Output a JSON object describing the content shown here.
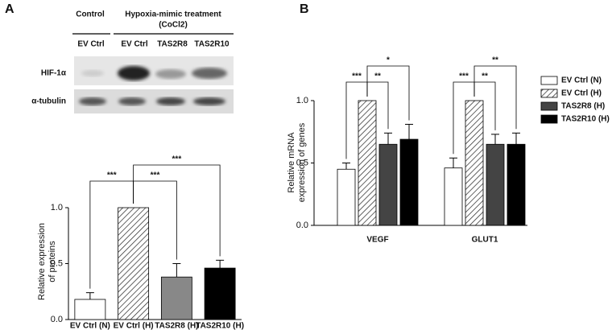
{
  "panels": [
    "A",
    "B"
  ],
  "blot": {
    "control": "Control",
    "treatment": [
      "Hypoxia-mimic treatment",
      "(CoCl2)"
    ],
    "lanes": [
      "EV Ctrl",
      "EV Ctrl",
      "TAS2R8",
      "TAS2R10"
    ],
    "rows": [
      "HIF-1α",
      "α-tubulin"
    ]
  },
  "chart_data": [
    {
      "type": "bar",
      "y_label": [
        "Relative expression",
        "of proteins"
      ],
      "categories": [
        "EV Ctrl (N)",
        "EV Ctrl (H)",
        "TAS2R8 (H)",
        "TAS2R10 (H)"
      ],
      "values": [
        0.18,
        1.0,
        0.38,
        0.46
      ],
      "errors": [
        0.06,
        null,
        0.12,
        0.07
      ],
      "colors": [
        "#ffffff",
        "#ffffff",
        "#888888",
        "#000000"
      ],
      "hatch": [
        false,
        true,
        false,
        false
      ],
      "ylim": [
        0,
        1
      ],
      "yticks": [
        {
          "value": 0,
          "label": "0.0"
        },
        {
          "value": 0.5,
          "label": "0.5"
        },
        {
          "value": 1,
          "label": "1.0"
        }
      ],
      "annotations": [
        "***",
        "***",
        "***"
      ]
    },
    {
      "type": "grouped_bar",
      "y_label": [
        "Relative mRNA",
        "expression of genes"
      ],
      "categories": [
        "VEGF",
        "GLUT1"
      ],
      "series": [
        {
          "name": "EV Ctrl (N)",
          "color": "#ffffff",
          "hatch": false,
          "values": [
            0.45,
            0.46
          ],
          "errors": [
            0.05,
            0.08
          ]
        },
        {
          "name": "EV Ctrl (H)",
          "color": "#ffffff",
          "hatch": true,
          "values": [
            1.0,
            1.0
          ],
          "errors": [
            null,
            null
          ]
        },
        {
          "name": "TAS2R8 (H)",
          "color": "#444444",
          "hatch": false,
          "values": [
            0.65,
            0.65
          ],
          "errors": [
            0.09,
            0.08
          ]
        },
        {
          "name": "TAS2R10 (H)",
          "color": "#000000",
          "hatch": false,
          "values": [
            0.69,
            0.65
          ],
          "errors": [
            0.12,
            0.09
          ]
        }
      ],
      "ylim": [
        0,
        1
      ],
      "yticks": [
        {
          "value": 0,
          "label": "0.0"
        },
        {
          "value": 0.5,
          "label": "0.5"
        },
        {
          "value": 1,
          "label": "1.0"
        }
      ],
      "annotations": [
        "***",
        "**",
        "*",
        "***",
        "**",
        "**"
      ]
    }
  ]
}
